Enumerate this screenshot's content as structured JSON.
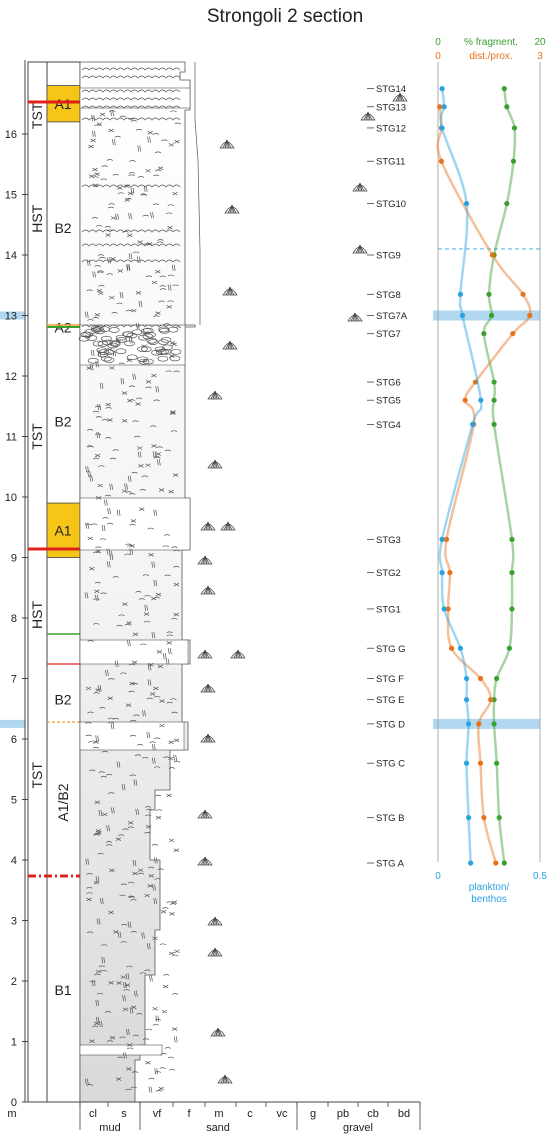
{
  "title": "Strongoli 2 section",
  "depth_unit": "m",
  "depth_ticks": [
    "0",
    "1",
    "2",
    "3",
    "4",
    "5",
    "6",
    "7",
    "8",
    "9",
    "10",
    "11",
    "12",
    "13",
    "14",
    "15",
    "16"
  ],
  "grain_size": {
    "columns": [
      "cl",
      "s",
      "vf",
      "f",
      "m",
      "c",
      "vc",
      "g",
      "pb",
      "cb",
      "bd"
    ],
    "groups": [
      "mud",
      "sand",
      "gravel"
    ]
  },
  "sequences": [
    {
      "label": "TST",
      "from": 15.8,
      "to": 16.8
    },
    {
      "label": "HST",
      "from": 13.0,
      "to": 16.2
    },
    {
      "label": "TST",
      "from": 9.0,
      "to": 13.0
    },
    {
      "label": "HST",
      "from": 7.1,
      "to": 9.0
    },
    {
      "label": "TST",
      "from": 3.7,
      "to": 7.1
    }
  ],
  "units": [
    {
      "label": "A1",
      "from": 16.2,
      "to": 16.8,
      "color": "#f5c518"
    },
    {
      "label": "B2",
      "from": 12.7,
      "to": 16.2
    },
    {
      "label": "A2",
      "from": 12.6,
      "to": 13.0
    },
    {
      "label": "B2",
      "from": 9.9,
      "to": 12.6
    },
    {
      "label": "A1",
      "from": 9.0,
      "to": 9.9,
      "color": "#f5c518"
    },
    {
      "label": "B2",
      "from": 6.2,
      "to": 7.1
    },
    {
      "label": "A1/B2",
      "from": 3.7,
      "to": 6.2
    },
    {
      "label": "B1",
      "from": 0.0,
      "to": 3.7
    }
  ],
  "samples": [
    {
      "name": "STG14",
      "depth": 16.75
    },
    {
      "name": "STG13",
      "depth": 16.45
    },
    {
      "name": "STG12",
      "depth": 16.1
    },
    {
      "name": "STG11",
      "depth": 15.55
    },
    {
      "name": "STG10",
      "depth": 14.85
    },
    {
      "name": "STG9",
      "depth": 14.0
    },
    {
      "name": "STG8",
      "depth": 13.35
    },
    {
      "name": "STG7A",
      "depth": 13.0
    },
    {
      "name": "STG7",
      "depth": 12.7
    },
    {
      "name": "STG6",
      "depth": 11.9
    },
    {
      "name": "STG5",
      "depth": 11.6
    },
    {
      "name": "STG4",
      "depth": 11.2
    },
    {
      "name": "STG3",
      "depth": 9.3
    },
    {
      "name": "STG2",
      "depth": 8.75
    },
    {
      "name": "STG1",
      "depth": 8.15
    },
    {
      "name": "STG G",
      "depth": 7.5
    },
    {
      "name": "STG F",
      "depth": 7.0
    },
    {
      "name": "STG E",
      "depth": 6.65
    },
    {
      "name": "STG D",
      "depth": 6.25
    },
    {
      "name": "STG C",
      "depth": 5.6
    },
    {
      "name": "STG B",
      "depth": 4.7
    },
    {
      "name": "STG A",
      "depth": 3.95
    }
  ],
  "chart_data": {
    "type": "line",
    "axes": [
      {
        "name": "% fragment.",
        "min_label": "0",
        "max_label": "20",
        "min": 0,
        "max": 20,
        "color": "#3aa02e"
      },
      {
        "name": "dist./prox.",
        "min_label": "0",
        "max_label": "3",
        "min": 0,
        "max": 3,
        "color": "#e8711c"
      },
      {
        "name": "plankton/ benthos",
        "min_label": "0",
        "max_label": "0.5",
        "min": 0,
        "max": 0.5,
        "color": "#29a3e0"
      }
    ],
    "series": [
      {
        "name": "% fragment.",
        "color": "#3aa02e",
        "points": [
          [
            16.75,
            13.0
          ],
          [
            16.45,
            13.5
          ],
          [
            16.1,
            15.0
          ],
          [
            15.55,
            14.8
          ],
          [
            14.85,
            13.5
          ],
          [
            14.0,
            11.0
          ],
          [
            13.35,
            10.0
          ],
          [
            13.0,
            10.5
          ],
          [
            12.7,
            9.0
          ],
          [
            11.9,
            11.0
          ],
          [
            11.6,
            11.0
          ],
          [
            11.2,
            11.0
          ],
          [
            9.3,
            14.5
          ],
          [
            8.75,
            14.5
          ],
          [
            8.15,
            14.5
          ],
          [
            7.5,
            14.0
          ],
          [
            7.0,
            11.5
          ],
          [
            6.65,
            11.0
          ],
          [
            6.25,
            11.0
          ],
          [
            5.6,
            11.5
          ],
          [
            4.7,
            12.0
          ],
          [
            3.95,
            13.0
          ]
        ]
      },
      {
        "name": "dist./prox.",
        "color": "#e8711c",
        "points": [
          [
            16.45,
            0.05
          ],
          [
            16.1,
            0.1
          ],
          [
            15.55,
            0.1
          ],
          [
            14.0,
            1.6
          ],
          [
            13.35,
            2.5
          ],
          [
            13.0,
            2.7
          ],
          [
            12.7,
            2.2
          ],
          [
            11.9,
            1.1
          ],
          [
            11.6,
            0.8
          ],
          [
            11.2,
            1.05
          ],
          [
            9.3,
            0.25
          ],
          [
            8.75,
            0.35
          ],
          [
            8.15,
            0.3
          ],
          [
            7.5,
            0.4
          ],
          [
            7.0,
            1.25
          ],
          [
            6.65,
            1.55
          ],
          [
            6.25,
            1.2
          ],
          [
            5.6,
            1.25
          ],
          [
            4.7,
            1.35
          ],
          [
            3.95,
            1.7
          ]
        ]
      },
      {
        "name": "plankton/ benthos",
        "color": "#29a3e0",
        "points": [
          [
            16.75,
            0.02
          ],
          [
            16.45,
            0.03
          ],
          [
            16.1,
            0.02
          ],
          [
            14.85,
            0.14
          ],
          [
            13.35,
            0.11
          ],
          [
            13.0,
            0.12
          ],
          [
            11.6,
            0.21
          ],
          [
            11.2,
            0.17
          ],
          [
            9.3,
            0.02
          ],
          [
            8.75,
            0.02
          ],
          [
            8.15,
            0.03
          ],
          [
            7.5,
            0.11
          ],
          [
            7.0,
            0.14
          ],
          [
            6.65,
            0.14
          ],
          [
            6.25,
            0.15
          ],
          [
            5.6,
            0.14
          ],
          [
            4.7,
            0.15
          ],
          [
            3.95,
            0.16
          ]
        ]
      }
    ],
    "highlight_bands": [
      {
        "depth": 13.0,
        "color": "#a9d3ef"
      },
      {
        "depth": 6.25,
        "color": "#a9d3ef"
      }
    ],
    "dashed_reference_depth": 14.1
  }
}
